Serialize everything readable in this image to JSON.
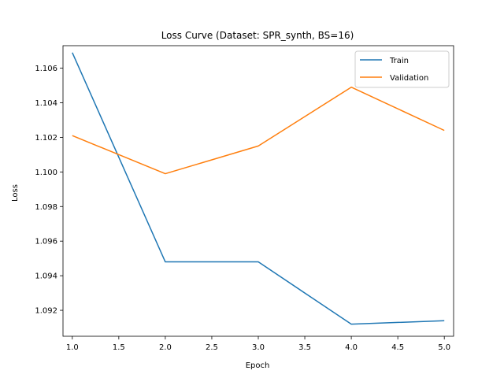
{
  "chart_data": {
    "type": "line",
    "title": "Loss Curve (Dataset: SPR_synth, BS=16)",
    "xlabel": "Epoch",
    "ylabel": "Loss",
    "x": [
      1.0,
      2.0,
      3.0,
      4.0,
      5.0
    ],
    "xlim": [
      0.9,
      5.1
    ],
    "ylim": [
      1.0905,
      1.1073
    ],
    "xticks": [
      "1.0",
      "1.5",
      "2.0",
      "2.5",
      "3.0",
      "3.5",
      "4.0",
      "4.5",
      "5.0"
    ],
    "yticks": [
      "1.092",
      "1.094",
      "1.096",
      "1.098",
      "1.100",
      "1.102",
      "1.104",
      "1.106"
    ],
    "grid": false,
    "legend_position": "top-right",
    "series": [
      {
        "name": "Train",
        "color": "#1f77b4",
        "values": [
          1.1069,
          1.0948,
          1.0948,
          1.0912,
          1.0914
        ]
      },
      {
        "name": "Validation",
        "color": "#ff7f0e",
        "values": [
          1.1021,
          1.0999,
          1.1015,
          1.1049,
          1.1024
        ]
      }
    ]
  }
}
